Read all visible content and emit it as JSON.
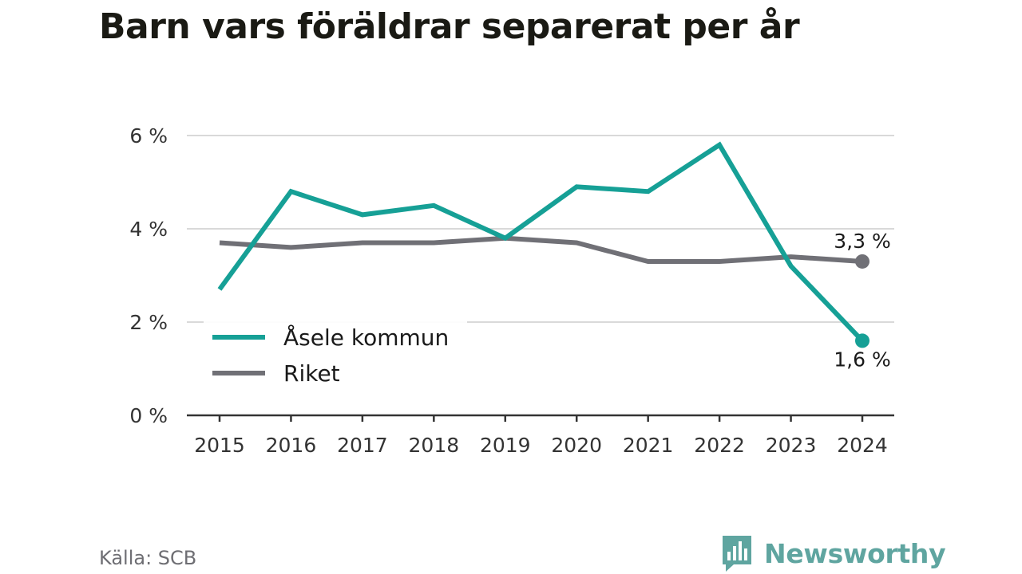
{
  "title": "Barn vars föräldrar separerat per år",
  "source": "Källa: SCB",
  "brand": {
    "name": "Newsworthy",
    "logo_icon": "bar-chart-bubble-icon",
    "color": "#5fa5a0"
  },
  "chart_data": {
    "type": "line",
    "title": "Barn vars föräldrar separerat per år",
    "x": [
      "2015",
      "2016",
      "2017",
      "2018",
      "2019",
      "2020",
      "2021",
      "2022",
      "2023",
      "2024"
    ],
    "ylim": [
      0,
      6
    ],
    "yticks": [
      0,
      2,
      4,
      6
    ],
    "ytick_labels": [
      "0 %",
      "2 %",
      "4 %",
      "6 %"
    ],
    "grid": true,
    "legend_position": "bottom-left",
    "series": [
      {
        "name": "Åsele kommun",
        "color": "#16a096",
        "values": [
          2.7,
          4.8,
          4.3,
          4.5,
          3.8,
          4.9,
          4.8,
          5.8,
          3.2,
          1.6
        ],
        "end_label": "1,6 %"
      },
      {
        "name": "Riket",
        "color": "#707076",
        "values": [
          3.7,
          3.6,
          3.7,
          3.7,
          3.8,
          3.7,
          3.3,
          3.3,
          3.4,
          3.3
        ],
        "end_label": "3,3 %"
      }
    ]
  }
}
